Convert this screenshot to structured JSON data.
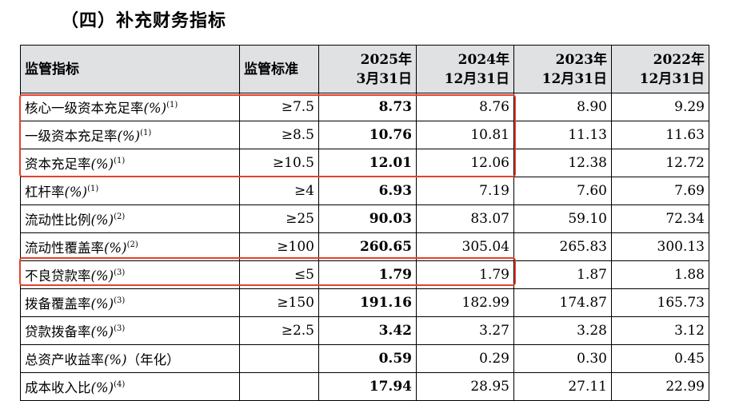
{
  "heading": "（四）补充财务指标",
  "headers": {
    "metric": "监管指标",
    "standard": "监管标准",
    "col1_line1": "2025年",
    "col1_line2": "3月31日",
    "col2_line1": "2024年",
    "col2_line2": "12月31日",
    "col3_line1": "2023年",
    "col3_line2": "12月31日",
    "col4_line1": "2022年",
    "col4_line2": "12月31日"
  },
  "rows": [
    {
      "name": "核心一级资本充足率",
      "pct": "(%)",
      "note": "(1)",
      "standard": "≥7.5",
      "v2025": "8.73",
      "v2024": "8.76",
      "v2023": "8.90",
      "v2022": "9.29"
    },
    {
      "name": "一级资本充足率",
      "pct": "(%)",
      "note": "(1)",
      "standard": "≥8.5",
      "v2025": "10.76",
      "v2024": "10.81",
      "v2023": "11.13",
      "v2022": "11.63"
    },
    {
      "name": "资本充足率",
      "pct": "(%)",
      "note": "(1)",
      "standard": "≥10.5",
      "v2025": "12.01",
      "v2024": "12.06",
      "v2023": "12.38",
      "v2022": "12.72"
    },
    {
      "name": "杠杆率",
      "pct": "(%)",
      "note": "(1)",
      "standard": "≥4",
      "v2025": "6.93",
      "v2024": "7.19",
      "v2023": "7.60",
      "v2022": "7.69"
    },
    {
      "name": "流动性比例",
      "pct": "(%)",
      "note": "(2)",
      "standard": "≥25",
      "v2025": "90.03",
      "v2024": "83.07",
      "v2023": "59.10",
      "v2022": "72.34"
    },
    {
      "name": "流动性覆盖率",
      "pct": "(%)",
      "note": "(2)",
      "standard": "≥100",
      "v2025": "260.65",
      "v2024": "305.04",
      "v2023": "265.83",
      "v2022": "300.13"
    },
    {
      "name": "不良贷款率",
      "pct": "(%)",
      "note": "(3)",
      "standard": "≤5",
      "v2025": "1.79",
      "v2024": "1.79",
      "v2023": "1.87",
      "v2022": "1.88"
    },
    {
      "name": "拨备覆盖率",
      "pct": "(%)",
      "note": "(3)",
      "standard": "≥150",
      "v2025": "191.16",
      "v2024": "182.99",
      "v2023": "174.87",
      "v2022": "165.73"
    },
    {
      "name": "贷款拨备率",
      "pct": "(%)",
      "note": "(3)",
      "standard": "≥2.5",
      "v2025": "3.42",
      "v2024": "3.27",
      "v2023": "3.28",
      "v2022": "3.12"
    },
    {
      "name": "总资产收益率",
      "pct": "(%)",
      "note": "（年化）",
      "standard": "",
      "v2025": "0.59",
      "v2024": "0.29",
      "v2023": "0.30",
      "v2022": "0.45"
    },
    {
      "name": "成本收入比",
      "pct": "(%)",
      "note": "(4)",
      "standard": "",
      "v2025": "17.94",
      "v2024": "28.95",
      "v2023": "27.11",
      "v2022": "22.99"
    }
  ],
  "highlight_color": "#e2422f"
}
